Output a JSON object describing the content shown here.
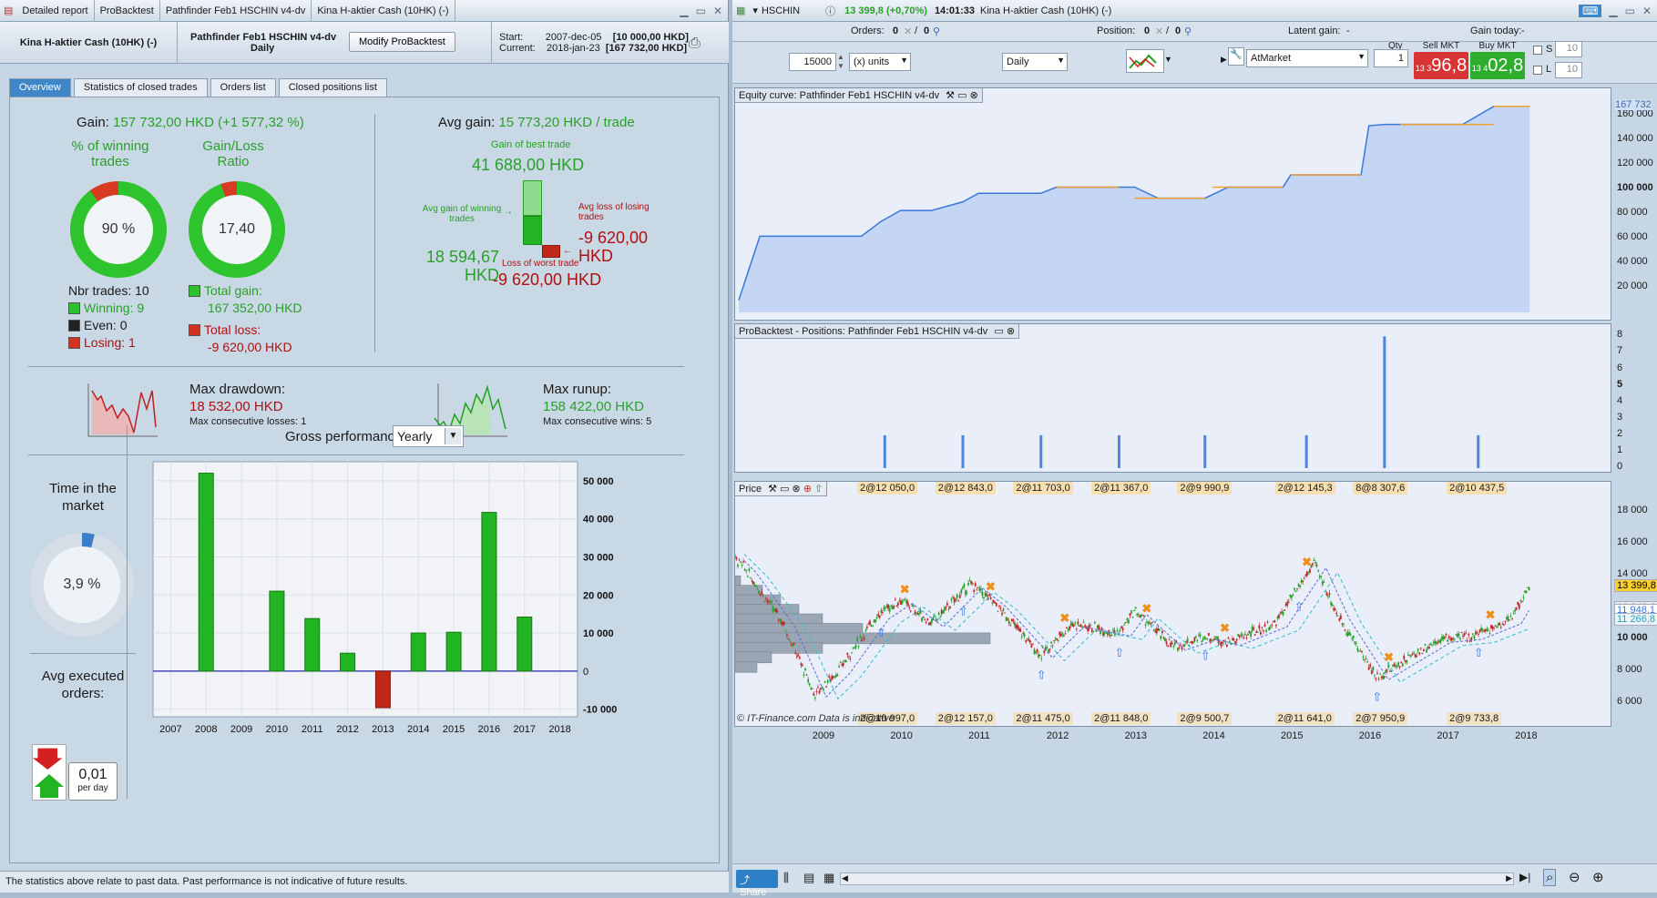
{
  "left_window": {
    "tabs": [
      "Detailed report",
      "ProBacktest",
      "Pathfinder Feb1 HSCHIN v4-dv",
      "Kina H-aktier Cash (10HK) (-)"
    ],
    "instrument": "Kina H-aktier Cash (10HK) (-)",
    "system_name": "Pathfinder Feb1 HSCHIN v4-dv",
    "timeframe": "Daily",
    "modify_button": "Modify ProBacktest",
    "start_label": "Start:",
    "start_date": "2007-dec-05",
    "start_capital": "[10 000,00 HKD]",
    "current_label": "Current:",
    "current_date": "2018-jan-23",
    "current_capital": "[167 732,00 HKD]"
  },
  "report_tabs": [
    "Overview",
    "Statistics of closed trades",
    "Orders list",
    "Closed positions list"
  ],
  "overview": {
    "gain_label": "Gain:",
    "gain_value": "157 732,00 HKD (+1 577,32 %)",
    "pct_winning_label": "% of winning trades",
    "pct_winning_value": "90 %",
    "pct_winning_fraction": 0.9,
    "gain_loss_label": "Gain/Loss Ratio",
    "gain_loss_value": "17,40",
    "gain_loss_fraction": 0.946,
    "nbr_trades": "Nbr trades: 10",
    "winning": "Winning: 9",
    "even": "Even: 0",
    "losing": "Losing: 1",
    "total_gain_label": "Total gain:",
    "total_gain_value": "167 352,00 HKD",
    "total_loss_label": "Total loss:",
    "total_loss_value": "-9 620,00 HKD",
    "avg_gain_label": "Avg gain:",
    "avg_gain_value": "15 773,20 HKD / trade",
    "best_trade_label": "Gain of best trade",
    "best_trade_value": "41 688,00 HKD",
    "avg_win_label": "Avg gain of winning trades",
    "avg_win_value": "18 594,67 HKD",
    "avg_loss_label": "Avg loss of losing trades",
    "avg_loss_value": "-9 620,00 HKD",
    "worst_trade_label": "Loss of worst trade",
    "worst_trade_value": "-9 620,00 HKD",
    "max_drawdown_label": "Max drawdown:",
    "max_drawdown_value": "18 532,00 HKD",
    "max_consec_losses": "Max consecutive losses: 1",
    "max_runup_label": "Max runup:",
    "max_runup_value": "158 422,00 HKD",
    "max_consec_wins": "Max consecutive wins: 5",
    "time_in_market_label": "Time in the market",
    "time_in_market_value": "3,9 %",
    "time_in_market_fraction": 0.039,
    "avg_orders_label": "Avg executed orders:",
    "avg_orders_value": "0,01",
    "avg_orders_unit": "per day",
    "gross_perf_label": "Gross performance",
    "gross_perf_period": "Yearly",
    "disclaimer": "The statistics above relate to past data. Past performance is not indicative of future results."
  },
  "chart_data": [
    {
      "type": "bar",
      "title": "Gross performance",
      "categories": [
        "2007",
        "2008",
        "2009",
        "2010",
        "2011",
        "2012",
        "2013",
        "2014",
        "2015",
        "2016",
        "2017",
        "2018"
      ],
      "values": [
        0,
        52000,
        0,
        21000,
        13800,
        4700,
        -9620,
        10000,
        10200,
        41700,
        14200,
        0
      ],
      "ylim": [
        -12000,
        55000
      ],
      "yticks": [
        "50 000",
        "40 000",
        "30 000",
        "20 000",
        "10 000",
        "0",
        "-10 000"
      ],
      "ytick_values": [
        50000,
        40000,
        30000,
        20000,
        10000,
        0,
        -10000
      ],
      "colors": {
        "positive": "#22b422",
        "negative": "#c0281a"
      }
    },
    {
      "type": "area",
      "title": "Equity curve: Pathfinder Feb1 HSCHIN v4-dv",
      "x": [
        2007.93,
        2008.2,
        2008.5,
        2008.9,
        2009.5,
        2009.75,
        2010.0,
        2010.4,
        2010.8,
        2011.0,
        2011.5,
        2011.8,
        2012.0,
        2012.3,
        2012.8,
        2013.0,
        2013.3,
        2013.6,
        2013.9,
        2014.2,
        2014.6,
        2014.9,
        2015.0,
        2015.4,
        2015.9,
        2016.0,
        2016.2,
        2016.8,
        2017.2,
        2017.6,
        2017.9,
        2018.06
      ],
      "values": [
        10000,
        62000,
        62000,
        62000,
        62000,
        74000,
        83000,
        83000,
        90000,
        97000,
        97000,
        97000,
        102000,
        102000,
        102000,
        102000,
        93000,
        93000,
        93000,
        102000,
        102000,
        102000,
        112000,
        112000,
        112000,
        152000,
        153000,
        153000,
        153000,
        167732,
        167732,
        167732
      ],
      "ylim": [
        0,
        175000
      ],
      "yticks": [
        "160 000",
        "140 000",
        "120 000",
        "100 000",
        "80 000",
        "60 000",
        "40 000",
        "20 000"
      ],
      "ytick_values": [
        160000,
        140000,
        120000,
        100000,
        80000,
        60000,
        40000,
        20000
      ],
      "last_value": "167 732"
    },
    {
      "type": "bar",
      "title": "ProBacktest - Positions: Pathfinder Feb1 HSCHIN v4-dv",
      "x": [
        2009.8,
        2010.8,
        2011.8,
        2012.8,
        2013.9,
        2015.2,
        2016.2,
        2017.4
      ],
      "values": [
        2,
        2,
        2,
        2,
        2,
        2,
        8,
        2
      ],
      "ylim": [
        0,
        8.3
      ],
      "yticks": [
        "8",
        "7",
        "6",
        "5",
        "4",
        "3",
        "2",
        "1",
        "0"
      ],
      "ytick_values": [
        8,
        7,
        6,
        5,
        4,
        3,
        2,
        1,
        0
      ]
    }
  ],
  "right_window": {
    "symbol": "HSCHIN",
    "price_change": "13 399,8 (+0,70%)",
    "time": "14:01:33",
    "instrument": "Kina H-aktier Cash (10HK) (-)",
    "orders_label": "Orders:",
    "orders_value": "0",
    "orders_value2": "0",
    "position_label": "Position:",
    "position_value": "0",
    "position_value2": "0",
    "latent_gain_label": "Latent gain:",
    "latent_gain_value": "-",
    "gain_today_label": "Gain today:",
    "gain_today_value": "-",
    "units_value": "15000",
    "units_label": "(x) units",
    "period": "Daily",
    "order_type": "AtMarket",
    "qty_label": "Qty",
    "qty_value": "1",
    "sell_label": "Sell MKT",
    "sell_small": "13 3",
    "sell_big": "96,8",
    "buy_label": "Buy MKT",
    "buy_small": "13 4",
    "buy_big": "02,8",
    "s_label": "S",
    "s_value": "10",
    "l_label": "L",
    "l_value": "10",
    "price_panel_title": "Price",
    "price_yticks": [
      "18 000",
      "16 000",
      "14 000",
      "12 000",
      "10 000",
      "8 000",
      "6 000"
    ],
    "price_tags": [
      "13 399,8",
      "12 242,8",
      "11 948,1",
      "11 266,8"
    ],
    "trade_labels_top": [
      "2@12 050,0",
      "2@12 843,0",
      "2@11 703,0",
      "2@11 367,0",
      "2@9 990,9",
      "2@12 145,3",
      "8@8 307,6",
      "2@10 437,5"
    ],
    "trade_labels_bottom": [
      "2@10 997,0",
      "2@12 157,0",
      "2@11 475,0",
      "2@11 848,0",
      "2@9 500,7",
      "2@11 641,0",
      "2@7 950,9",
      "2@9 733,8"
    ],
    "x_years": [
      "2009",
      "2010",
      "2011",
      "2012",
      "2013",
      "2014",
      "2015",
      "2016",
      "2017",
      "2018"
    ],
    "watermark": "© IT-Finance.com  Data is indicative",
    "share_label": "Share"
  }
}
